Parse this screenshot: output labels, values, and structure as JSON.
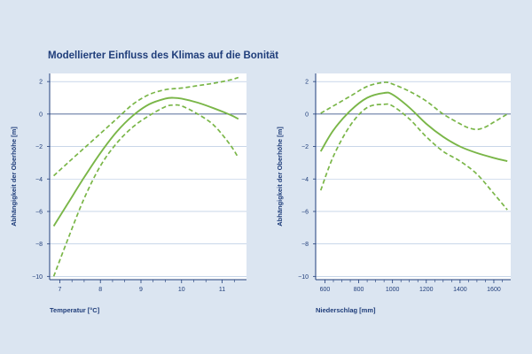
{
  "title": "Modellierter Einfluss des Klimas auf die Bonität",
  "colors": {
    "background": "#dbe5f1",
    "plot_background": "#ffffff",
    "axis": "#1f3d7a",
    "grid": "#a9bfdc",
    "series": "#7ab648"
  },
  "chart_data": [
    {
      "type": "line",
      "xlabel": "Temperatur [°C]",
      "ylabel": "Abhängigkeit der Oberhöhe [m]",
      "xlim": [
        6.75,
        11.6
      ],
      "ylim": [
        -10.2,
        2.5
      ],
      "xticks": [
        7,
        8,
        9,
        10,
        11
      ],
      "yticks": [
        2,
        0,
        -2,
        -4,
        -6,
        -8,
        -10
      ],
      "minor_xticks": [
        7.3,
        7.6,
        8.3,
        8.6,
        9.3,
        9.6,
        10.3,
        10.6,
        11.3
      ],
      "grid": "horizontal",
      "series": [
        {
          "style": "solid",
          "x": [
            6.85,
            7.2,
            7.6,
            8.0,
            8.4,
            8.8,
            9.2,
            9.6,
            9.8,
            10.0,
            10.4,
            10.8,
            11.2,
            11.4
          ],
          "y": [
            -6.9,
            -5.5,
            -3.9,
            -2.4,
            -1.1,
            -0.1,
            0.6,
            0.95,
            1.0,
            0.95,
            0.7,
            0.35,
            -0.05,
            -0.3
          ]
        },
        {
          "style": "dashed",
          "x": [
            6.85,
            7.2,
            7.6,
            8.0,
            8.4,
            8.8,
            9.2,
            9.6,
            10.0,
            10.4,
            10.8,
            11.2,
            11.4
          ],
          "y": [
            -3.8,
            -3.0,
            -2.1,
            -1.2,
            -0.3,
            0.6,
            1.2,
            1.5,
            1.6,
            1.75,
            1.9,
            2.1,
            2.25
          ]
        },
        {
          "style": "dashed",
          "x": [
            6.85,
            7.2,
            7.6,
            8.0,
            8.4,
            8.8,
            9.2,
            9.6,
            9.8,
            10.0,
            10.4,
            10.8,
            11.2,
            11.4
          ],
          "y": [
            -10.0,
            -7.7,
            -5.2,
            -3.2,
            -1.8,
            -0.8,
            -0.1,
            0.45,
            0.55,
            0.5,
            0.0,
            -0.7,
            -1.9,
            -2.7
          ]
        }
      ]
    },
    {
      "type": "line",
      "xlabel": "Niederschlag [mm]",
      "ylabel": "Abhängigkeit der Oberhöhe [m]",
      "xlim": [
        545,
        1700
      ],
      "ylim": [
        -10.2,
        2.5
      ],
      "xticks": [
        600,
        800,
        1000,
        1200,
        1400,
        1600
      ],
      "yticks": [
        2,
        0,
        -2,
        -4,
        -6,
        -8,
        -10
      ],
      "minor_xticks": [
        650,
        700,
        750,
        850,
        900,
        950,
        1050,
        1100,
        1150,
        1250,
        1300,
        1350,
        1450,
        1500,
        1550,
        1650
      ],
      "grid": "horizontal",
      "series": [
        {
          "style": "solid",
          "x": [
            575,
            650,
            750,
            850,
            950,
            1000,
            1100,
            1200,
            1300,
            1400,
            1500,
            1600,
            1680
          ],
          "y": [
            -2.3,
            -1.0,
            0.2,
            1.0,
            1.3,
            1.2,
            0.4,
            -0.6,
            -1.4,
            -2.0,
            -2.4,
            -2.7,
            -2.9
          ]
        },
        {
          "style": "dashed",
          "x": [
            575,
            650,
            750,
            850,
            950,
            1000,
            1100,
            1200,
            1300,
            1400,
            1450,
            1500,
            1550,
            1600,
            1680
          ],
          "y": [
            0.05,
            0.5,
            1.1,
            1.7,
            1.95,
            1.85,
            1.4,
            0.8,
            0.0,
            -0.6,
            -0.85,
            -0.95,
            -0.8,
            -0.5,
            0.0
          ]
        },
        {
          "style": "dashed",
          "x": [
            575,
            650,
            750,
            850,
            950,
            1000,
            1100,
            1200,
            1300,
            1400,
            1500,
            1600,
            1680
          ],
          "y": [
            -4.7,
            -2.6,
            -0.7,
            0.4,
            0.6,
            0.5,
            -0.3,
            -1.4,
            -2.3,
            -2.9,
            -3.7,
            -4.9,
            -5.9
          ]
        }
      ]
    }
  ]
}
